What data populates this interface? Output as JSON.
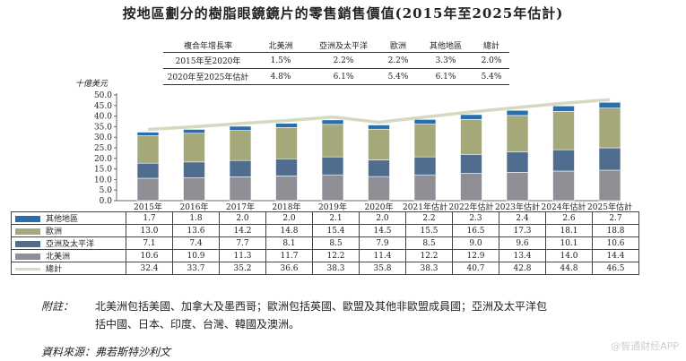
{
  "title": "按地區劃分的樹脂眼鏡鏡片的零售銷售價值(2015年至2025年估計)",
  "cagr": {
    "header": [
      "複合年增長率",
      "北美洲",
      "亞洲及太平洋",
      "歐洲",
      "其他地區",
      "總計"
    ],
    "rows": [
      {
        "period": "2015年至2020年",
        "values": [
          "1.5%",
          "2.2%",
          "2.2%",
          "3.3%",
          "2.0%"
        ]
      },
      {
        "period": "2020年至2025年估計",
        "values": [
          "4.8%",
          "6.1%",
          "5.4%",
          "6.1%",
          "5.4%"
        ]
      }
    ]
  },
  "unit_label": "十億美元",
  "chart_data": {
    "type": "bar",
    "stacked": true,
    "categories": [
      "2015年",
      "2016年",
      "2017年",
      "2018年",
      "2019年",
      "2020年",
      "2021年估計",
      "2022年估計",
      "2023年估計",
      "2024年估計",
      "2025年估計"
    ],
    "ylim": [
      0,
      50
    ],
    "yticks": [
      "0.0",
      "5.0",
      "10.0",
      "15.0",
      "20.0",
      "25.0",
      "30.0",
      "35.0",
      "40.0",
      "45.0",
      "50.0"
    ],
    "grid": false,
    "series": [
      {
        "name": "北美洲",
        "color": "#8e8e94",
        "values": [
          10.6,
          10.9,
          11.3,
          11.7,
          12.2,
          11.4,
          12.2,
          12.9,
          13.4,
          14.0,
          14.4
        ]
      },
      {
        "name": "亞洲及太平洋",
        "color": "#4e6d8f",
        "values": [
          7.1,
          7.4,
          7.7,
          8.1,
          8.5,
          7.9,
          8.5,
          9.0,
          9.6,
          10.1,
          10.6
        ]
      },
      {
        "name": "歐洲",
        "color": "#a5a878",
        "values": [
          13.0,
          13.6,
          14.2,
          14.8,
          15.4,
          14.5,
          15.5,
          16.5,
          17.3,
          18.1,
          18.8
        ]
      },
      {
        "name": "其他地區",
        "color": "#2a6fad",
        "values": [
          1.7,
          1.8,
          2.0,
          2.0,
          2.1,
          2.0,
          2.2,
          2.3,
          2.4,
          2.6,
          2.7
        ]
      }
    ],
    "total": {
      "name": "總計",
      "color": "#d4d9bf",
      "values": [
        32.4,
        33.7,
        35.2,
        36.6,
        38.3,
        35.8,
        38.3,
        40.7,
        42.8,
        44.8,
        46.5
      ]
    },
    "table_rows": [
      {
        "name": "其他地區",
        "color": "#2a6fad",
        "values": [
          "1.7",
          "1.8",
          "2.0",
          "2.0",
          "2.1",
          "2.0",
          "2.2",
          "2.3",
          "2.4",
          "2.6",
          "2.7"
        ]
      },
      {
        "name": "歐洲",
        "color": "#a5a878",
        "values": [
          "13.0",
          "13.6",
          "14.2",
          "14.8",
          "15.4",
          "14.5",
          "15.5",
          "16.5",
          "17.3",
          "18.1",
          "18.8"
        ]
      },
      {
        "name": "亞洲及太平洋",
        "color": "#4e6d8f",
        "values": [
          "7.1",
          "7.4",
          "7.7",
          "8.1",
          "8.5",
          "7.9",
          "8.5",
          "9.0",
          "9.6",
          "10.1",
          "10.6"
        ]
      },
      {
        "name": "北美洲",
        "color": "#8e8e94",
        "values": [
          "10.6",
          "10.9",
          "11.3",
          "11.7",
          "12.2",
          "11.4",
          "12.2",
          "12.9",
          "13.4",
          "14.0",
          "14.4"
        ]
      },
      {
        "name": "總計",
        "color": "#d4d9bf",
        "values": [
          "32.4",
          "33.7",
          "35.2",
          "36.6",
          "38.3",
          "35.8",
          "38.3",
          "40.7",
          "42.8",
          "44.8",
          "46.5"
        ]
      }
    ]
  },
  "note_label": "附註：",
  "note_line1": "北美洲包括美國、加拿大及墨西哥；歐洲包括英國、歐盟及其他非歐盟成員國；亞洲及太平洋包",
  "note_line2": "括中國、日本、印度、台灣、韓國及澳洲。",
  "source": "資料來源：弗若斯特沙利文",
  "watermark": "@智通财经APP"
}
